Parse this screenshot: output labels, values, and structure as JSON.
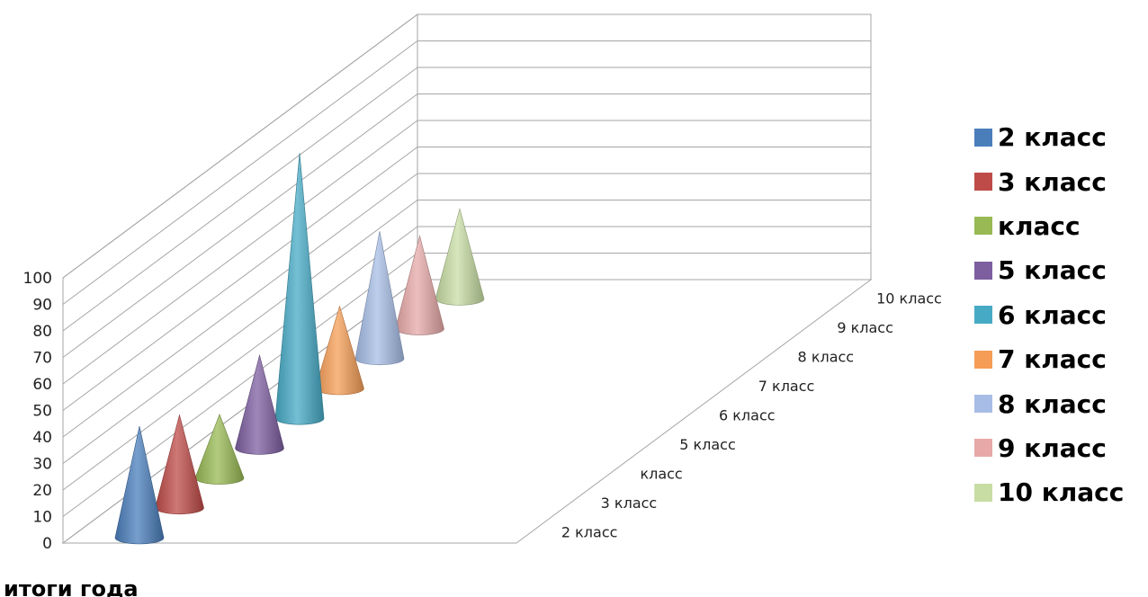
{
  "chart_data": {
    "type": "bar",
    "style": "3d-cone",
    "categories": [
      "итоги года"
    ],
    "series": [
      {
        "name": "2 класс",
        "values": [
          42
        ],
        "color": "#4a7ebb"
      },
      {
        "name": "3 класс",
        "values": [
          35
        ],
        "color": "#be4b48"
      },
      {
        "name": "класс",
        "values": [
          24
        ],
        "color": "#98b954"
      },
      {
        "name": "5 класс",
        "values": [
          35
        ],
        "color": "#7d5fa0"
      },
      {
        "name": "6 класс",
        "values": [
          100
        ],
        "color": "#46aac5"
      },
      {
        "name": "7 класс",
        "values": [
          31
        ],
        "color": "#f59d56"
      },
      {
        "name": "8 класс",
        "values": [
          48
        ],
        "color": "#a7bde6"
      },
      {
        "name": "9 класс",
        "values": [
          35
        ],
        "color": "#e6a9a8"
      },
      {
        "name": "10 класс",
        "values": [
          34
        ],
        "color": "#c8dda4"
      }
    ],
    "depth_labels": [
      "2 класс",
      "3 класс",
      "класс",
      "5 класс",
      "6 класс",
      "7 класс",
      "8 класс",
      "9 класс",
      "10 класс"
    ],
    "y_ticks": [
      "0",
      "10",
      "20",
      "30",
      "40",
      "50",
      "60",
      "70",
      "80",
      "90",
      "100"
    ],
    "ylim": [
      0,
      100
    ],
    "grid": true,
    "legend_position": "right"
  }
}
